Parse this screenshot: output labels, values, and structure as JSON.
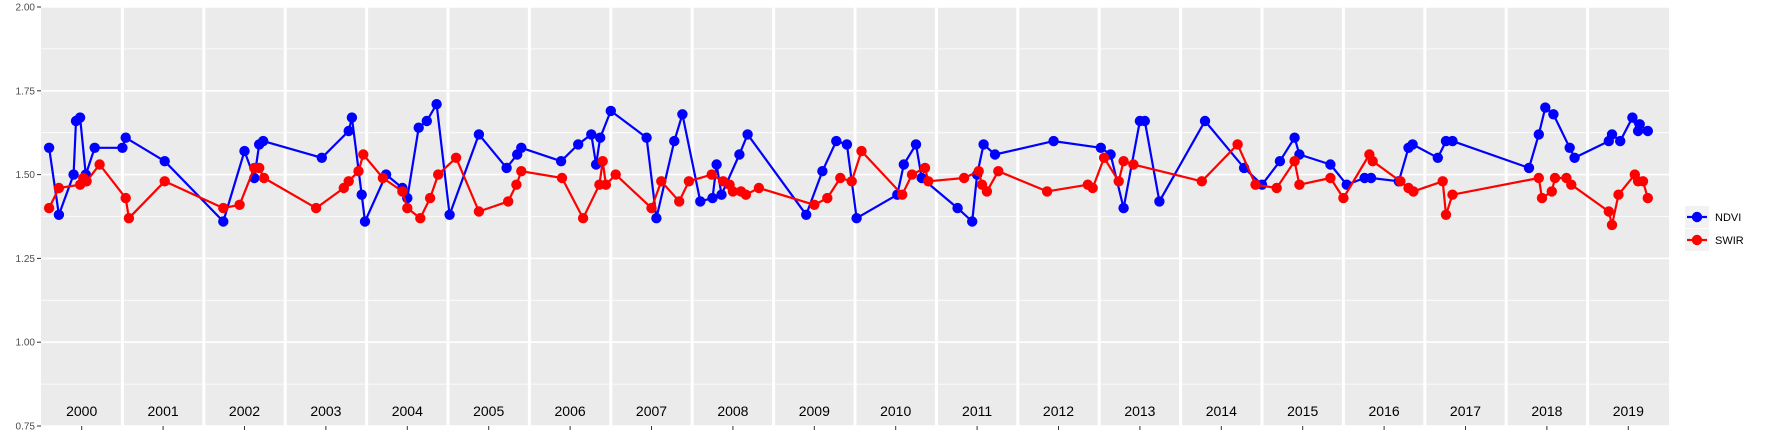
{
  "chart_data": {
    "type": "line",
    "title": "",
    "xlabel": "",
    "ylabel": "",
    "ylim": [
      0.75,
      2.0
    ],
    "yticks": [
      "0.75",
      "1.00",
      "1.25",
      "1.50",
      "1.75",
      "2.00"
    ],
    "xlim": [
      2000.0,
      2020.0
    ],
    "year_labels": [
      "2000",
      "2001",
      "2002",
      "2003",
      "2004",
      "2005",
      "2006",
      "2007",
      "2008",
      "2009",
      "2010",
      "2011",
      "2012",
      "2013",
      "2014",
      "2015",
      "2016",
      "2017",
      "2018",
      "2019"
    ],
    "grid": true,
    "legend_position": "right",
    "series": [
      {
        "name": "NDVI",
        "color": "#0000FF",
        "points": [
          [
            2000.1,
            1.58
          ],
          [
            2000.22,
            1.38
          ],
          [
            2000.4,
            1.5
          ],
          [
            2000.43,
            1.66
          ],
          [
            2000.48,
            1.67
          ],
          [
            2000.55,
            1.5
          ],
          [
            2000.66,
            1.58
          ],
          [
            2001.0,
            1.58
          ],
          [
            2001.04,
            1.61
          ],
          [
            2001.52,
            1.54
          ],
          [
            2002.24,
            1.36
          ],
          [
            2002.5,
            1.57
          ],
          [
            2002.62,
            1.49
          ],
          [
            2002.68,
            1.59
          ],
          [
            2002.73,
            1.6
          ],
          [
            2003.45,
            1.55
          ],
          [
            2003.78,
            1.63
          ],
          [
            2003.82,
            1.67
          ],
          [
            2003.94,
            1.44
          ],
          [
            2003.98,
            1.36
          ],
          [
            2004.24,
            1.5
          ],
          [
            2004.44,
            1.46
          ],
          [
            2004.5,
            1.43
          ],
          [
            2004.64,
            1.64
          ],
          [
            2004.74,
            1.66
          ],
          [
            2004.86,
            1.71
          ],
          [
            2005.02,
            1.38
          ],
          [
            2005.38,
            1.62
          ],
          [
            2005.72,
            1.52
          ],
          [
            2005.85,
            1.56
          ],
          [
            2005.9,
            1.58
          ],
          [
            2006.39,
            1.54
          ],
          [
            2006.6,
            1.59
          ],
          [
            2006.76,
            1.62
          ],
          [
            2006.82,
            1.53
          ],
          [
            2006.87,
            1.61
          ],
          [
            2007.0,
            1.69
          ],
          [
            2007.44,
            1.61
          ],
          [
            2007.56,
            1.37
          ],
          [
            2007.78,
            1.6
          ],
          [
            2007.88,
            1.68
          ],
          [
            2008.1,
            1.42
          ],
          [
            2008.25,
            1.43
          ],
          [
            2008.3,
            1.53
          ],
          [
            2008.36,
            1.44
          ],
          [
            2008.58,
            1.56
          ],
          [
            2008.68,
            1.62
          ],
          [
            2009.4,
            1.38
          ],
          [
            2009.6,
            1.51
          ],
          [
            2009.77,
            1.6
          ],
          [
            2009.9,
            1.59
          ],
          [
            2010.02,
            1.37
          ],
          [
            2010.52,
            1.44
          ],
          [
            2010.6,
            1.53
          ],
          [
            2010.75,
            1.59
          ],
          [
            2010.82,
            1.49
          ],
          [
            2011.26,
            1.4
          ],
          [
            2011.44,
            1.36
          ],
          [
            2011.5,
            1.5
          ],
          [
            2011.58,
            1.59
          ],
          [
            2011.72,
            1.56
          ],
          [
            2012.44,
            1.6
          ],
          [
            2013.02,
            1.58
          ],
          [
            2013.14,
            1.56
          ],
          [
            2013.3,
            1.4
          ],
          [
            2013.5,
            1.66
          ],
          [
            2013.56,
            1.66
          ],
          [
            2013.74,
            1.42
          ],
          [
            2014.3,
            1.66
          ],
          [
            2014.78,
            1.52
          ],
          [
            2015.0,
            1.47
          ],
          [
            2015.22,
            1.54
          ],
          [
            2015.4,
            1.61
          ],
          [
            2015.46,
            1.56
          ],
          [
            2015.84,
            1.53
          ],
          [
            2016.04,
            1.47
          ],
          [
            2016.26,
            1.49
          ],
          [
            2016.34,
            1.49
          ],
          [
            2016.68,
            1.48
          ],
          [
            2016.8,
            1.58
          ],
          [
            2016.85,
            1.59
          ],
          [
            2017.16,
            1.55
          ],
          [
            2017.26,
            1.6
          ],
          [
            2017.34,
            1.6
          ],
          [
            2018.28,
            1.52
          ],
          [
            2018.4,
            1.62
          ],
          [
            2018.48,
            1.7
          ],
          [
            2018.58,
            1.68
          ],
          [
            2018.78,
            1.58
          ],
          [
            2018.84,
            1.55
          ],
          [
            2019.26,
            1.6
          ],
          [
            2019.3,
            1.62
          ],
          [
            2019.4,
            1.6
          ],
          [
            2019.55,
            1.67
          ],
          [
            2019.62,
            1.63
          ],
          [
            2019.64,
            1.65
          ],
          [
            2019.74,
            1.63
          ]
        ]
      },
      {
        "name": "SWIR",
        "color": "#FF0000",
        "points": [
          [
            2000.1,
            1.4
          ],
          [
            2000.22,
            1.46
          ],
          [
            2000.48,
            1.47
          ],
          [
            2000.52,
            1.49
          ],
          [
            2000.56,
            1.48
          ],
          [
            2000.72,
            1.53
          ],
          [
            2001.04,
            1.43
          ],
          [
            2001.08,
            1.37
          ],
          [
            2001.52,
            1.48
          ],
          [
            2002.24,
            1.4
          ],
          [
            2002.44,
            1.41
          ],
          [
            2002.62,
            1.52
          ],
          [
            2002.68,
            1.52
          ],
          [
            2002.74,
            1.49
          ],
          [
            2003.38,
            1.4
          ],
          [
            2003.72,
            1.46
          ],
          [
            2003.78,
            1.48
          ],
          [
            2003.9,
            1.51
          ],
          [
            2003.96,
            1.56
          ],
          [
            2004.2,
            1.49
          ],
          [
            2004.44,
            1.45
          ],
          [
            2004.5,
            1.4
          ],
          [
            2004.66,
            1.37
          ],
          [
            2004.78,
            1.43
          ],
          [
            2004.88,
            1.5
          ],
          [
            2005.1,
            1.55
          ],
          [
            2005.38,
            1.39
          ],
          [
            2005.74,
            1.42
          ],
          [
            2005.84,
            1.47
          ],
          [
            2005.9,
            1.51
          ],
          [
            2006.4,
            1.49
          ],
          [
            2006.66,
            1.37
          ],
          [
            2006.86,
            1.47
          ],
          [
            2006.9,
            1.54
          ],
          [
            2006.94,
            1.47
          ],
          [
            2007.06,
            1.5
          ],
          [
            2007.5,
            1.4
          ],
          [
            2007.62,
            1.48
          ],
          [
            2007.84,
            1.42
          ],
          [
            2007.96,
            1.48
          ],
          [
            2008.24,
            1.5
          ],
          [
            2008.38,
            1.48
          ],
          [
            2008.46,
            1.47
          ],
          [
            2008.5,
            1.45
          ],
          [
            2008.6,
            1.45
          ],
          [
            2008.66,
            1.44
          ],
          [
            2008.82,
            1.46
          ],
          [
            2009.5,
            1.41
          ],
          [
            2009.66,
            1.43
          ],
          [
            2009.82,
            1.49
          ],
          [
            2009.96,
            1.48
          ],
          [
            2010.08,
            1.57
          ],
          [
            2010.58,
            1.44
          ],
          [
            2010.7,
            1.5
          ],
          [
            2010.86,
            1.52
          ],
          [
            2010.9,
            1.48
          ],
          [
            2011.34,
            1.49
          ],
          [
            2011.52,
            1.51
          ],
          [
            2011.56,
            1.47
          ],
          [
            2011.62,
            1.45
          ],
          [
            2011.76,
            1.51
          ],
          [
            2012.36,
            1.45
          ],
          [
            2012.86,
            1.47
          ],
          [
            2012.92,
            1.46
          ],
          [
            2013.06,
            1.55
          ],
          [
            2013.24,
            1.48
          ],
          [
            2013.3,
            1.54
          ],
          [
            2013.42,
            1.53
          ],
          [
            2014.26,
            1.48
          ],
          [
            2014.7,
            1.59
          ],
          [
            2014.92,
            1.47
          ],
          [
            2015.18,
            1.46
          ],
          [
            2015.4,
            1.54
          ],
          [
            2015.46,
            1.47
          ],
          [
            2015.84,
            1.49
          ],
          [
            2016.0,
            1.43
          ],
          [
            2016.32,
            1.56
          ],
          [
            2016.36,
            1.54
          ],
          [
            2016.7,
            1.48
          ],
          [
            2016.8,
            1.46
          ],
          [
            2016.86,
            1.45
          ],
          [
            2017.22,
            1.48
          ],
          [
            2017.26,
            1.38
          ],
          [
            2017.34,
            1.44
          ],
          [
            2018.4,
            1.49
          ],
          [
            2018.44,
            1.43
          ],
          [
            2018.56,
            1.45
          ],
          [
            2018.6,
            1.49
          ],
          [
            2018.74,
            1.49
          ],
          [
            2018.8,
            1.47
          ],
          [
            2019.26,
            1.39
          ],
          [
            2019.3,
            1.35
          ],
          [
            2019.38,
            1.44
          ],
          [
            2019.58,
            1.5
          ],
          [
            2019.62,
            1.48
          ],
          [
            2019.68,
            1.48
          ],
          [
            2019.74,
            1.43
          ]
        ]
      }
    ]
  }
}
